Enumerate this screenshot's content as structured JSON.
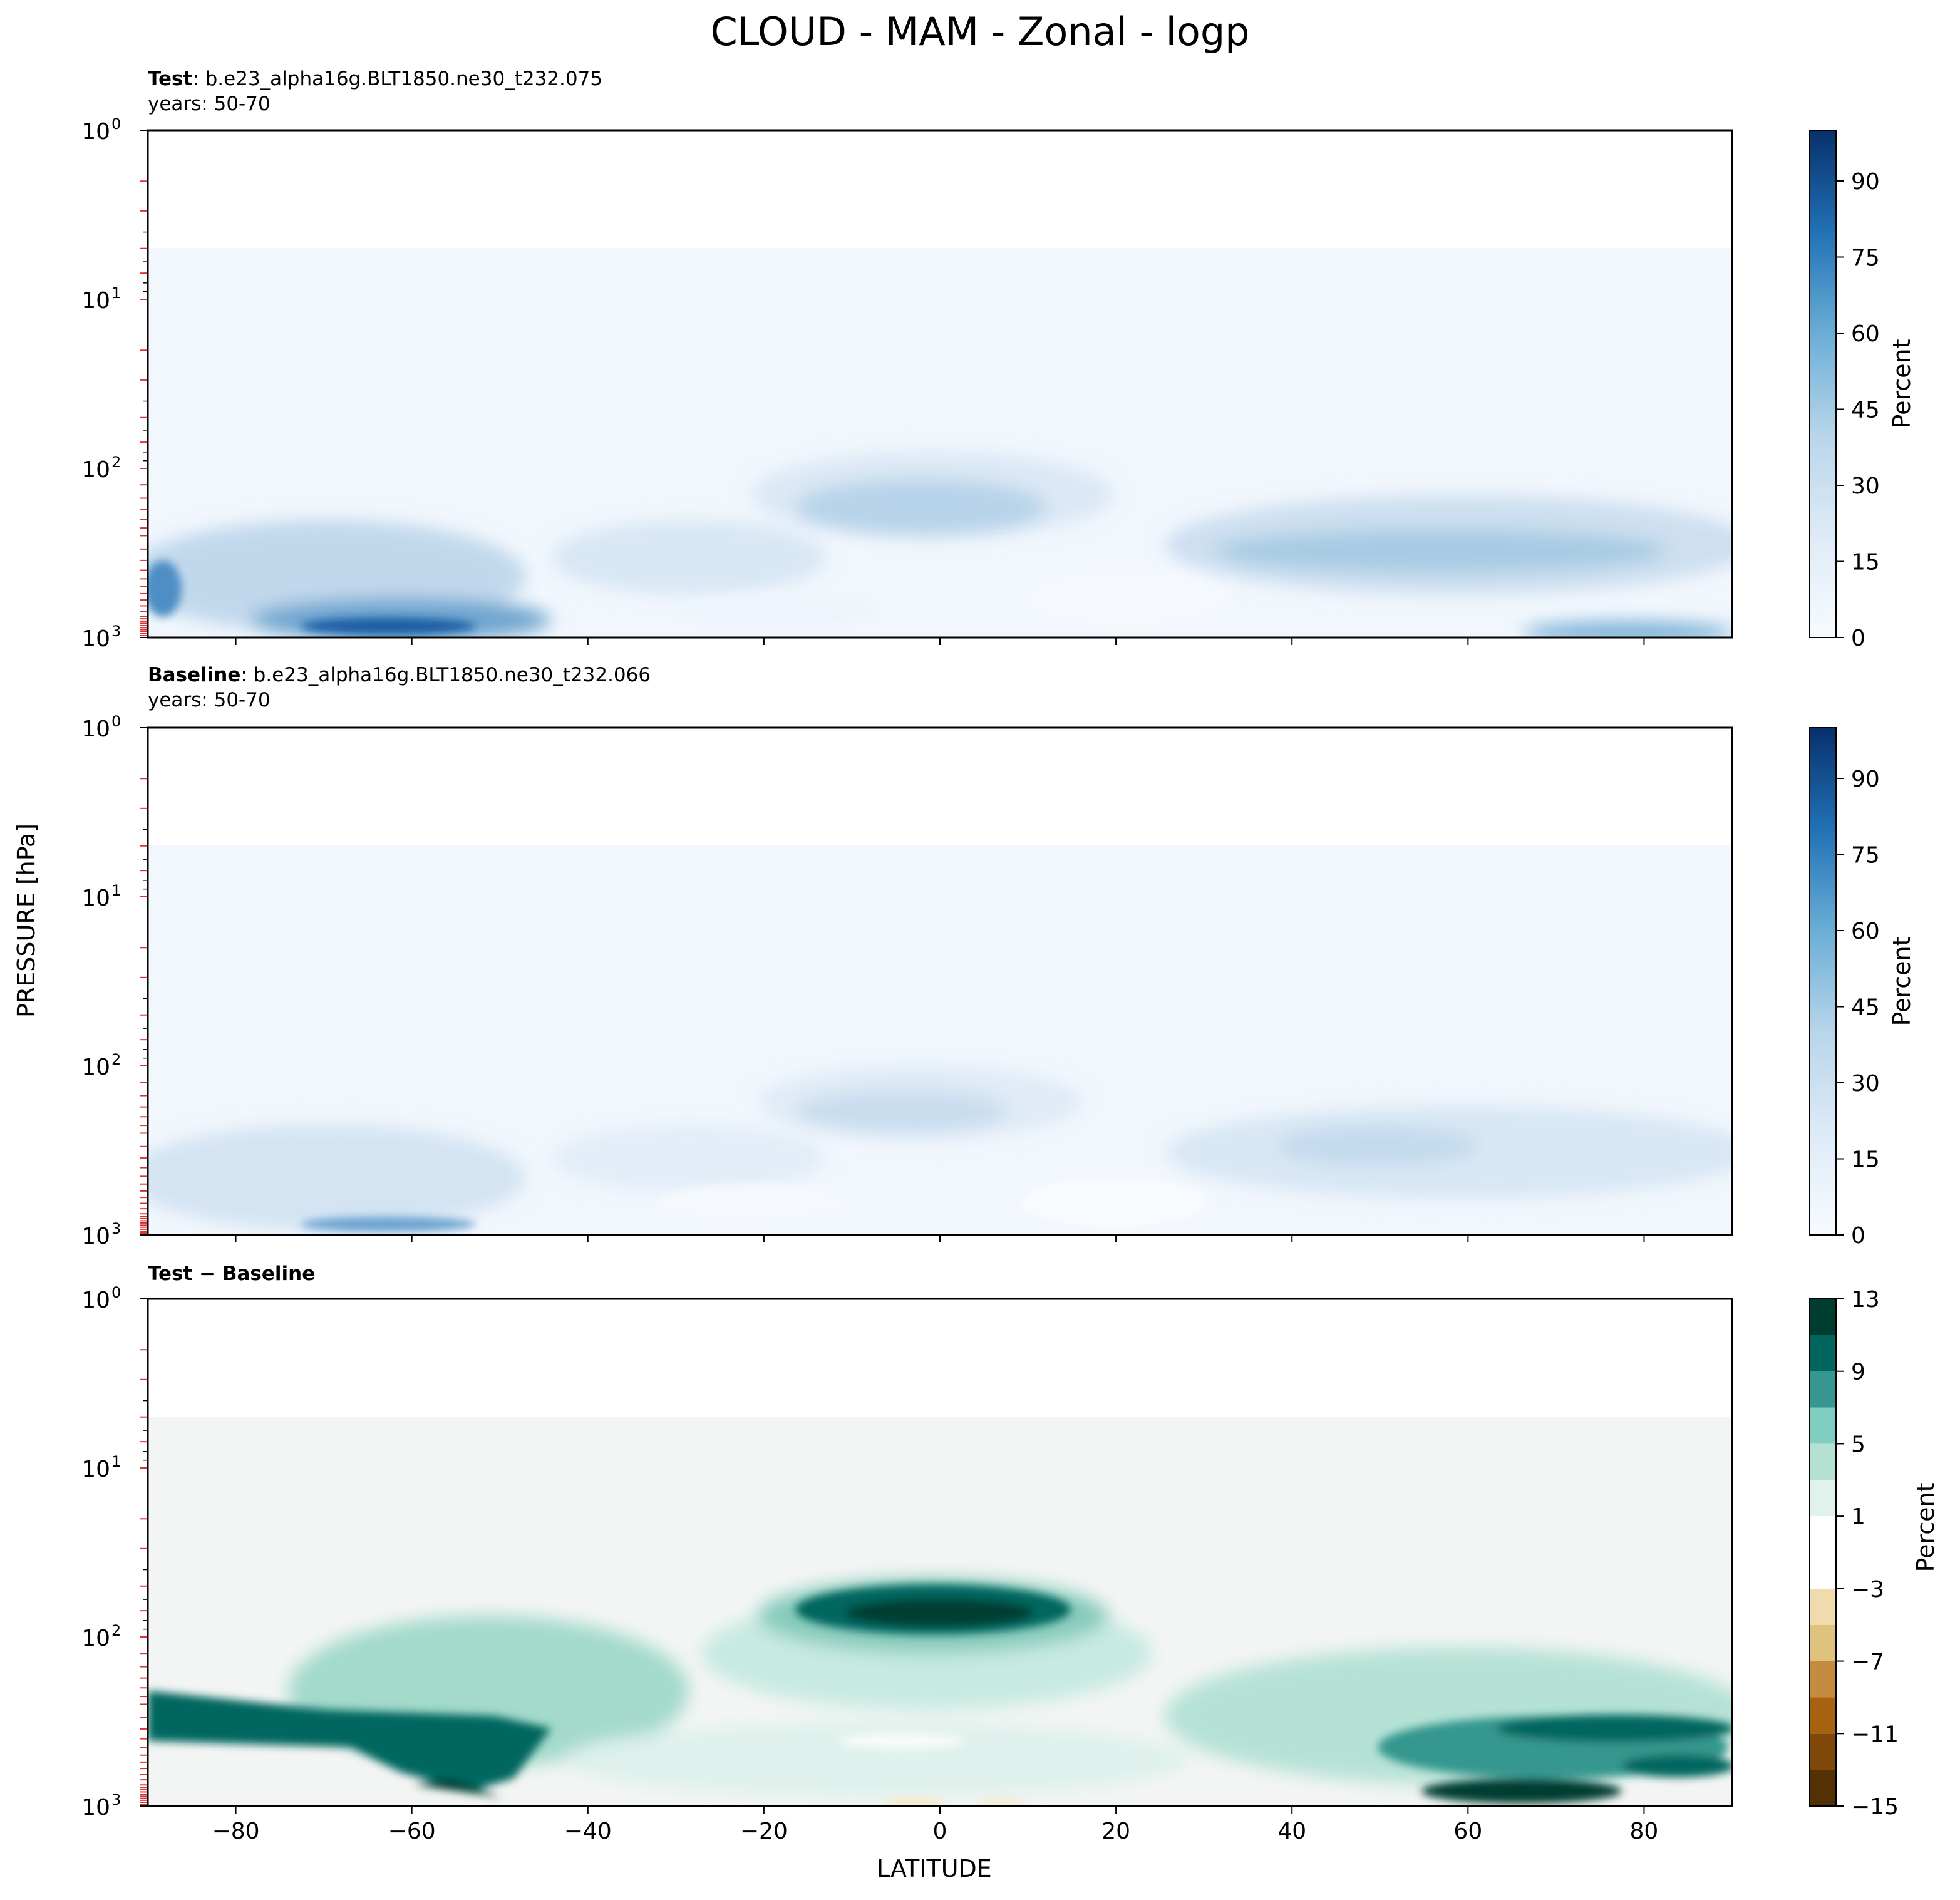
{
  "title": "CLOUD - MAM - Zonal - logp",
  "ylabel": "PRESSURE [hPa]",
  "xlabel": "LATITUDE",
  "panels": [
    {
      "label_bold": "Test",
      "label_rest": ": b.e23_alpha16g.BLT1850.ne30_t232.075",
      "years": "years: 50-70",
      "colorbar_label": "Percent",
      "colorbar_ticks": [
        "0",
        "15",
        "30",
        "45",
        "60",
        "75",
        "90"
      ]
    },
    {
      "label_bold": "Baseline",
      "label_rest": ": b.e23_alpha16g.BLT1850.ne30_t232.066",
      "years": "years: 50-70",
      "colorbar_label": "Percent",
      "colorbar_ticks": [
        "0",
        "15",
        "30",
        "45",
        "60",
        "75",
        "90"
      ]
    },
    {
      "label_bold": "Test − Baseline",
      "label_rest": "",
      "years": "",
      "colorbar_label": "Percent",
      "colorbar_ticks": [
        "−15",
        "−11",
        "−7",
        "−3",
        "1",
        "5",
        "9",
        "13"
      ]
    }
  ],
  "chart_data": [
    {
      "type": "heatmap",
      "title": "Test: b.e23_alpha16g.BLT1850.ne30_t232.075",
      "subtitle": "years: 50-70",
      "xlabel": "LATITUDE",
      "ylabel": "PRESSURE [hPa]",
      "x": [
        -90,
        90
      ],
      "y_scale": "log",
      "y_range_hPa": [
        1000,
        1
      ],
      "y_ticks": [
        "10^0",
        "10^1",
        "10^2",
        "10^3"
      ],
      "x_ticks": [
        "−80",
        "−60",
        "−40",
        "−20",
        "0",
        "20",
        "40",
        "60",
        "80"
      ],
      "colorbar": {
        "label": "Percent",
        "min": 0,
        "max": 100,
        "colormap": "Blues"
      },
      "features": [
        {
          "desc": "near zero",
          "lat": [
            -90,
            90
          ],
          "p_hPa": [
            1,
            5
          ],
          "value": 0
        },
        {
          "desc": "upper tropical cloud maximum",
          "lat": [
            -18,
            12
          ],
          "p_hPa": [
            140,
            230
          ],
          "value": 35
        },
        {
          "desc": "southern boundary-layer maximum",
          "lat": [
            -65,
            -55
          ],
          "p_hPa": [
            900,
            1000
          ],
          "value": 85
        },
        {
          "desc": "northern mid-latitude band",
          "lat": [
            30,
            90
          ],
          "p_hPa": [
            220,
            500
          ],
          "value": 30
        }
      ]
    },
    {
      "type": "heatmap",
      "title": "Baseline: b.e23_alpha16g.BLT1850.ne30_t232.066",
      "subtitle": "years: 50-70",
      "xlabel": "LATITUDE",
      "ylabel": "PRESSURE [hPa]",
      "x": [
        -90,
        90
      ],
      "y_scale": "log",
      "y_range_hPa": [
        1000,
        1
      ],
      "colorbar": {
        "label": "Percent",
        "min": 0,
        "max": 100,
        "colormap": "Blues"
      },
      "features": [
        {
          "desc": "upper tropical cloud",
          "lat": [
            -15,
            10
          ],
          "p_hPa": [
            160,
            240
          ],
          "value": 25
        },
        {
          "desc": "southern boundary-layer maximum",
          "lat": [
            -65,
            -55
          ],
          "p_hPa": [
            900,
            1000
          ],
          "value": 60
        },
        {
          "desc": "northern mid-latitude band",
          "lat": [
            30,
            90
          ],
          "p_hPa": [
            250,
            500
          ],
          "value": 22
        }
      ]
    },
    {
      "type": "heatmap",
      "title": "Test − Baseline",
      "xlabel": "LATITUDE",
      "ylabel": "PRESSURE [hPa]",
      "x": [
        -90,
        90
      ],
      "y_scale": "log",
      "y_range_hPa": [
        1000,
        1
      ],
      "colorbar": {
        "label": "Percent",
        "min": -15,
        "max": 13,
        "colormap": "BrBG",
        "ticks": [
          -15,
          -11,
          -7,
          -3,
          1,
          5,
          9,
          13
        ]
      },
      "features": [
        {
          "desc": "tropical upper positive difference",
          "lat": [
            -15,
            12
          ],
          "p_hPa": [
            100,
            180
          ],
          "value": 12
        },
        {
          "desc": "southern mid-latitude positive difference",
          "lat": [
            -90,
            -40
          ],
          "p_hPa": [
            200,
            900
          ],
          "value": 11
        },
        {
          "desc": "northern high-latitude positive difference",
          "lat": [
            40,
            90
          ],
          "p_hPa": [
            200,
            1000
          ],
          "value": 11
        },
        {
          "desc": "small negative near surface",
          "lat": [
            -5,
            10
          ],
          "p_hPa": [
            900,
            1000
          ],
          "value": -1
        }
      ]
    }
  ]
}
